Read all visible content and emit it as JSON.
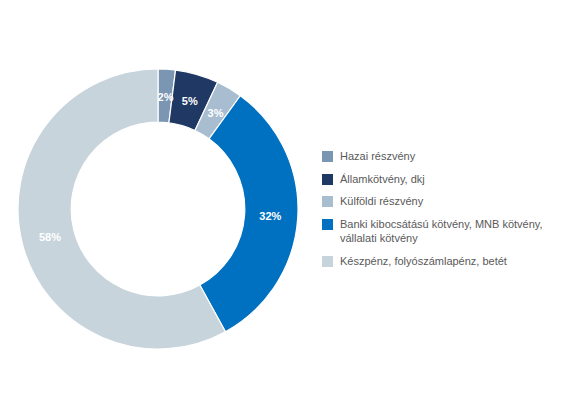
{
  "chart_data": {
    "type": "pie",
    "categories": [
      "Hazai részvény",
      "Államkötvény, dkj",
      "Külföldi részvény",
      "Banki kibocsátású kötvény, MNB kötvény,\nvállalati kötvény",
      "Készpénz, folyószámlapénz, betét"
    ],
    "values": [
      2,
      5,
      3,
      32,
      58
    ],
    "value_labels": [
      "2%",
      "5%",
      "3%",
      "32%",
      "58%"
    ],
    "colors": [
      "#7B96B2",
      "#1F3864",
      "#A8BDD0",
      "#0070C0",
      "#C8D4DC"
    ],
    "data_labels": true,
    "legend": "right"
  }
}
